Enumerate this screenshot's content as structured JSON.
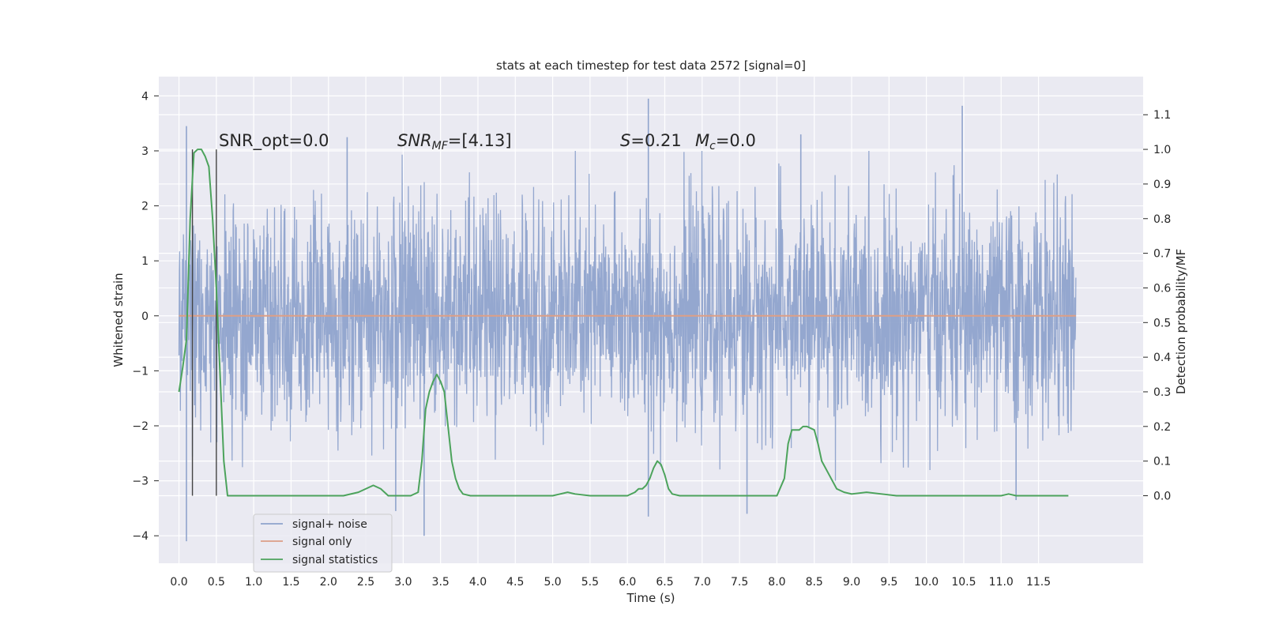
{
  "chart_data": {
    "type": "line",
    "title": "stats at each timestep for test data 2572 [signal=0]",
    "xlabel": "Time (s)",
    "ylabel": "Whitened strain",
    "y2label": "Detection probability/MF",
    "xlim": [
      -0.27,
      12.9
    ],
    "ylim": [
      -4.5,
      4.35
    ],
    "y2lim": [
      -0.195,
      1.21
    ],
    "xticks": [
      0.0,
      0.5,
      1.0,
      1.5,
      2.0,
      2.5,
      3.0,
      3.5,
      4.0,
      4.5,
      5.0,
      5.5,
      6.0,
      6.5,
      7.0,
      7.5,
      8.0,
      8.5,
      9.0,
      9.5,
      10.0,
      10.5,
      11.0,
      11.5
    ],
    "xtick_labels": [
      "0.0",
      "0.5",
      "1.0",
      "1.5",
      "2.0",
      "2.5",
      "3.0",
      "3.5",
      "4.0",
      "4.5",
      "5.0",
      "5.5",
      "6.0",
      "6.5",
      "7.0",
      "7.5",
      "8.0",
      "8.5",
      "9.0",
      "9.5",
      "10.0",
      "10.5",
      "11.0",
      "11.5"
    ],
    "yticks": [
      -4,
      -3,
      -2,
      -1,
      0,
      1,
      2,
      3,
      4
    ],
    "ytick_labels": [
      "−4",
      "−3",
      "−2",
      "−1",
      "0",
      "1",
      "2",
      "3",
      "4"
    ],
    "y2ticks": [
      0.0,
      0.1,
      0.2,
      0.3,
      0.4,
      0.5,
      0.6,
      0.7,
      0.8,
      0.9,
      1.0,
      1.1
    ],
    "y2tick_labels": [
      "0.0",
      "0.1",
      "0.2",
      "0.3",
      "0.4",
      "0.5",
      "0.6",
      "0.7",
      "0.8",
      "0.9",
      "1.0",
      "1.1"
    ],
    "grid": true,
    "legend_position": "lower-left",
    "annotations": {
      "snr_opt": "SNR_opt=0.0",
      "snr_mf_prefix": "SNR",
      "snr_mf_sub": "MF",
      "snr_mf_value": "=[4.13]",
      "s_symbol": "S",
      "s_value": "=0.21",
      "mc_symbol": "M",
      "mc_sub": "c",
      "mc_value": "=0.0"
    },
    "vertical_markers": [
      0.18,
      0.5
    ],
    "series": [
      {
        "name": "signal+ noise",
        "color": "#8fa3cc",
        "description_range": [
          0.0,
          12.0
        ],
        "approx_amplitude_sd": 1.0,
        "envelope_typical": [
          -2.3,
          2.3
        ],
        "extrema": [
          {
            "x": 0.1,
            "y": -4.1
          },
          {
            "x": 0.1,
            "y": 3.45
          },
          {
            "x": 3.28,
            "y": -4.0
          },
          {
            "x": 6.28,
            "y": 3.95
          },
          {
            "x": 6.28,
            "y": -3.65
          },
          {
            "x": 10.48,
            "y": 3.82
          },
          {
            "x": 7.6,
            "y": -3.6
          },
          {
            "x": 2.9,
            "y": -3.55
          },
          {
            "x": 8.32,
            "y": 3.3
          },
          {
            "x": 2.25,
            "y": 3.25
          },
          {
            "x": 11.2,
            "y": -3.35
          }
        ]
      },
      {
        "name": "signal only",
        "color": "#dd9f86",
        "x": [
          0.0,
          12.0
        ],
        "y": [
          0.0,
          0.0
        ]
      },
      {
        "name": "signal statistics",
        "color": "#4ca35c",
        "axis": "right",
        "x": [
          0.0,
          0.05,
          0.1,
          0.15,
          0.2,
          0.25,
          0.3,
          0.35,
          0.4,
          0.45,
          0.5,
          0.55,
          0.6,
          0.65,
          0.7,
          1.0,
          1.5,
          2.0,
          2.2,
          2.4,
          2.5,
          2.6,
          2.7,
          2.8,
          2.9,
          3.0,
          3.1,
          3.2,
          3.25,
          3.3,
          3.35,
          3.4,
          3.45,
          3.5,
          3.55,
          3.6,
          3.65,
          3.7,
          3.75,
          3.8,
          3.9,
          4.0,
          4.5,
          5.0,
          5.1,
          5.2,
          5.3,
          5.5,
          5.8,
          6.0,
          6.1,
          6.15,
          6.2,
          6.25,
          6.3,
          6.35,
          6.4,
          6.45,
          6.5,
          6.55,
          6.6,
          6.7,
          7.0,
          7.5,
          8.0,
          8.1,
          8.15,
          8.2,
          8.25,
          8.3,
          8.35,
          8.4,
          8.5,
          8.55,
          8.6,
          8.7,
          8.8,
          8.9,
          9.0,
          9.2,
          9.4,
          9.6,
          9.8,
          10.0,
          10.5,
          11.0,
          11.1,
          11.2,
          11.4,
          11.6,
          11.9
        ],
        "y": [
          0.3,
          0.37,
          0.45,
          0.8,
          0.99,
          1.0,
          1.0,
          0.98,
          0.95,
          0.8,
          0.6,
          0.35,
          0.1,
          0.0,
          0.0,
          0.0,
          0.0,
          0.0,
          0.0,
          0.01,
          0.02,
          0.03,
          0.02,
          0.0,
          0.0,
          0.0,
          0.0,
          0.01,
          0.1,
          0.25,
          0.3,
          0.33,
          0.35,
          0.33,
          0.3,
          0.2,
          0.1,
          0.05,
          0.02,
          0.005,
          0.0,
          0.0,
          0.0,
          0.0,
          0.005,
          0.01,
          0.005,
          0.0,
          0.0,
          0.0,
          0.01,
          0.02,
          0.02,
          0.03,
          0.05,
          0.08,
          0.1,
          0.09,
          0.06,
          0.02,
          0.005,
          0.0,
          0.0,
          0.0,
          0.0,
          0.05,
          0.15,
          0.19,
          0.19,
          0.19,
          0.2,
          0.2,
          0.19,
          0.15,
          0.1,
          0.06,
          0.02,
          0.01,
          0.005,
          0.01,
          0.005,
          0.0,
          0.0,
          0.0,
          0.0,
          0.0,
          0.005,
          0.0,
          0.0,
          0.0,
          0.0
        ]
      }
    ]
  }
}
